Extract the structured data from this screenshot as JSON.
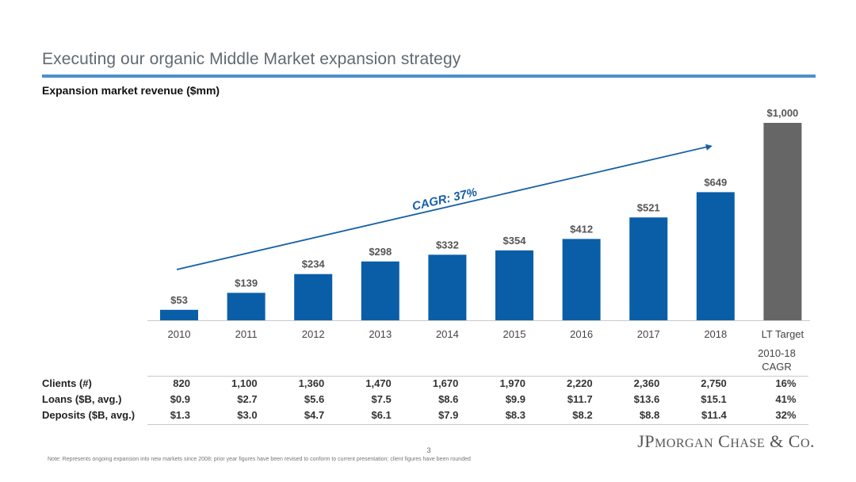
{
  "header": {
    "title": "Executing our organic Middle Market expansion strategy",
    "subtitle": "Expansion market revenue ($mm)"
  },
  "colors": {
    "bar": "#0a5ea8",
    "target_bar": "#666666",
    "accent_rule": "#4d8fcc",
    "cagr_arrow": "#1560a8"
  },
  "chart_data": {
    "type": "bar",
    "title": "Expansion market revenue ($mm)",
    "categories": [
      "2010",
      "2011",
      "2012",
      "2013",
      "2014",
      "2015",
      "2016",
      "2017",
      "2018",
      "LT Target"
    ],
    "values": [
      53,
      139,
      234,
      298,
      332,
      354,
      412,
      521,
      649,
      1000
    ],
    "value_labels": [
      "$53",
      "$139",
      "$234",
      "$298",
      "$332",
      "$354",
      "$412",
      "$521",
      "$649",
      "$1,000"
    ],
    "highlight": {
      "category": "LT Target",
      "color": "#666666"
    },
    "ylim": [
      0,
      1000
    ],
    "grid": false,
    "annotation": {
      "text": "CAGR: 37%",
      "from": "2010",
      "to": "2018"
    }
  },
  "table": {
    "header": [
      "2010-18",
      "CAGR"
    ],
    "rows": [
      {
        "label": "Clients (#)",
        "values": [
          "820",
          "1,100",
          "1,360",
          "1,470",
          "1,670",
          "1,970",
          "2,220",
          "2,360",
          "2,750"
        ],
        "cagr": "16%"
      },
      {
        "label": "Loans ($B, avg.)",
        "values": [
          "$0.9",
          "$2.7",
          "$5.6",
          "$7.5",
          "$8.6",
          "$9.9",
          "$11.7",
          "$13.6",
          "$15.1"
        ],
        "cagr": "41%"
      },
      {
        "label": "Deposits ($B, avg.)",
        "values": [
          "$1.3",
          "$3.0",
          "$4.7",
          "$6.1",
          "$7.9",
          "$8.3",
          "$8.2",
          "$8.8",
          "$11.4"
        ],
        "cagr": "32%"
      }
    ]
  },
  "footer": {
    "page_number": "3",
    "note": "Note: Represents ongoing expansion into new markets since 2008; prior year figures have been revised to conform to current presentation; client figures have been rounded",
    "logo": "JPMorgan Chase & Co."
  }
}
